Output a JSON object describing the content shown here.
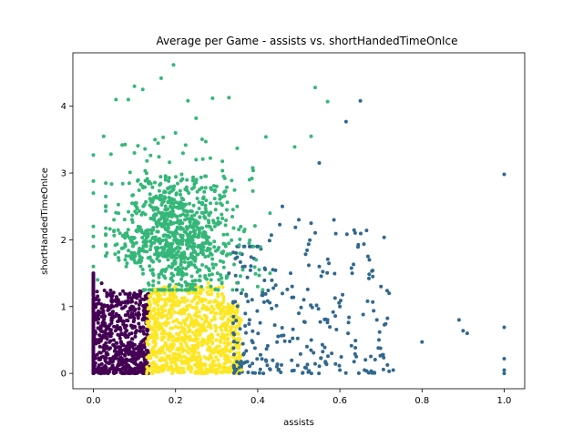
{
  "chart_data": {
    "type": "scatter",
    "title": "Average per Game - assists vs. shortHandedTimeOnIce",
    "xlabel": "assists",
    "ylabel": "shortHandedTimeOnIce",
    "xlim": [
      -0.05,
      1.05
    ],
    "ylim": [
      -0.23,
      4.8
    ],
    "xticks": [
      0.0,
      0.2,
      0.4,
      0.6,
      0.8,
      1.0
    ],
    "xtick_labels": [
      "0.0",
      "0.2",
      "0.4",
      "0.6",
      "0.8",
      "1.0"
    ],
    "yticks": [
      0,
      1,
      2,
      3,
      4
    ],
    "ytick_labels": [
      "0",
      "1",
      "2",
      "3",
      "4"
    ],
    "grid": false,
    "legend": "none",
    "cluster_colors": [
      "#440154",
      "#31688e",
      "#35b779",
      "#fde725"
    ],
    "clusters": [
      {
        "color": "#440154",
        "region": {
          "x": [
            0.0,
            0.135
          ],
          "y": [
            0.0,
            1.25
          ]
        },
        "points": [
          [
            0.0,
            0.0
          ],
          [
            0.0,
            1.5
          ],
          [
            0.0,
            1.2
          ],
          [
            0.0,
            0.9
          ],
          [
            0.0,
            0.6
          ],
          [
            0.0,
            0.3
          ],
          [
            0.02,
            1.35
          ],
          [
            0.03,
            0.05
          ],
          [
            0.05,
            0.7
          ],
          [
            0.06,
            1.1
          ],
          [
            0.08,
            0.4
          ],
          [
            0.1,
            1.2
          ],
          [
            0.12,
            0.02
          ],
          [
            0.13,
            0.9
          ]
        ]
      },
      {
        "color": "#fde725",
        "region": {
          "x": [
            0.13,
            0.36
          ],
          "y": [
            0.0,
            1.35
          ]
        },
        "points": [
          [
            0.13,
            0.0
          ],
          [
            0.15,
            1.25
          ],
          [
            0.2,
            1.3
          ],
          [
            0.25,
            1.2
          ],
          [
            0.28,
            1.35
          ],
          [
            0.3,
            0.05
          ],
          [
            0.33,
            0.9
          ],
          [
            0.35,
            0.5
          ],
          [
            0.36,
            0.05
          ]
        ]
      },
      {
        "color": "#31688e",
        "region": {
          "x": [
            0.33,
            0.75
          ],
          "y": [
            0.0,
            2.5
          ]
        },
        "points": [
          [
            0.33,
            1.5
          ],
          [
            0.36,
            1.2
          ],
          [
            0.38,
            0.8
          ],
          [
            0.4,
            1.9
          ],
          [
            0.42,
            0.2
          ],
          [
            0.45,
            0.05
          ],
          [
            0.46,
            2.5
          ],
          [
            0.48,
            1.5
          ],
          [
            0.5,
            2.3
          ],
          [
            0.5,
            0.9
          ],
          [
            0.52,
            0.4
          ],
          [
            0.55,
            3.15
          ],
          [
            0.55,
            1.6
          ],
          [
            0.57,
            0.8
          ],
          [
            0.58,
            0.3
          ],
          [
            0.6,
            1.0
          ],
          [
            0.6,
            0.05
          ],
          [
            0.62,
            0.6
          ],
          [
            0.615,
            3.77
          ],
          [
            0.63,
            1.5
          ],
          [
            0.64,
            0.25
          ],
          [
            0.65,
            4.08
          ],
          [
            0.66,
            0.05
          ],
          [
            0.665,
            2.14
          ],
          [
            0.68,
            1.45
          ],
          [
            0.69,
            0.8
          ],
          [
            0.7,
            1.3
          ],
          [
            0.72,
            0.03
          ],
          [
            0.72,
            1.2
          ],
          [
            0.73,
            0.05
          ],
          [
            0.8,
            0.47
          ],
          [
            0.89,
            0.8
          ],
          [
            0.9,
            0.64
          ],
          [
            0.91,
            0.6
          ],
          [
            1.0,
            2.98
          ],
          [
            1.0,
            0.69
          ],
          [
            1.0,
            0.22
          ],
          [
            1.0,
            0.05
          ],
          [
            1.0,
            0.0
          ]
        ]
      },
      {
        "color": "#35b779",
        "region": {
          "x": [
            0.0,
            0.43
          ],
          "y": [
            1.25,
            4.65
          ]
        },
        "points": [
          [
            0.0,
            3.27
          ],
          [
            0.0,
            2.88
          ],
          [
            0.0,
            2.7
          ],
          [
            0.0,
            2.2
          ],
          [
            0.0,
            1.9
          ],
          [
            0.0,
            1.6
          ],
          [
            0.0,
            2.05
          ],
          [
            0.025,
            3.55
          ],
          [
            0.055,
            4.1
          ],
          [
            0.07,
            3.42
          ],
          [
            0.085,
            4.1
          ],
          [
            0.1,
            4.3
          ],
          [
            0.12,
            4.25
          ],
          [
            0.165,
            4.42
          ],
          [
            0.195,
            4.62
          ],
          [
            0.23,
            4.08
          ],
          [
            0.25,
            3.82
          ],
          [
            0.29,
            4.12
          ],
          [
            0.33,
            4.13
          ],
          [
            0.35,
            3.37
          ],
          [
            0.38,
            2.9
          ],
          [
            0.39,
            1.9
          ],
          [
            0.42,
            3.54
          ],
          [
            0.43,
            2.4
          ],
          [
            0.43,
            1.5
          ],
          [
            0.49,
            3.39
          ],
          [
            0.53,
            3.55
          ],
          [
            0.54,
            4.28
          ],
          [
            0.57,
            4.07
          ],
          [
            0.01,
            1.4
          ],
          [
            0.05,
            2.3
          ],
          [
            0.1,
            3.3
          ],
          [
            0.15,
            3.5
          ],
          [
            0.2,
            3.6
          ],
          [
            0.25,
            3.2
          ],
          [
            0.3,
            2.8
          ],
          [
            0.35,
            2.5
          ],
          [
            0.4,
            1.3
          ],
          [
            0.08,
            1.6
          ],
          [
            0.12,
            2.8
          ]
        ]
      }
    ]
  }
}
